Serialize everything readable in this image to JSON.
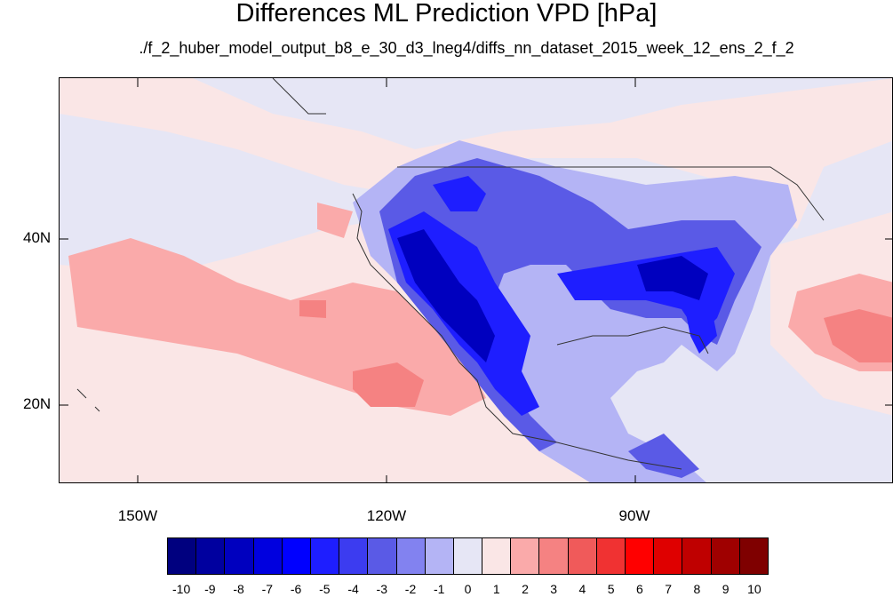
{
  "title": "Differences ML Prediction VPD [hPa]",
  "subtitle": "./f_2_huber_model_output_b8_e_30_d3_lneg4/diffs_nn_dataset_2015_week_12_ens_2_f_2",
  "map": {
    "lat_labels": [
      "40N",
      "20N"
    ],
    "lon_labels": [
      "150W",
      "120W",
      "90W"
    ],
    "background_color": "#e6e6f5"
  },
  "colorbar": {
    "labels": [
      "-10",
      "-9",
      "-8",
      "-7",
      "-6",
      "-5",
      "-4",
      "-3",
      "-2",
      "-1",
      "0",
      "1",
      "2",
      "3",
      "4",
      "5",
      "6",
      "7",
      "8",
      "9",
      "10"
    ],
    "colors": [
      "#00007f",
      "#00009f",
      "#0000bf",
      "#0000df",
      "#0000ff",
      "#1e1eff",
      "#3c3cf0",
      "#5a5ae6",
      "#8282f0",
      "#b4b4f5",
      "#e6e6f5",
      "#fae6e6",
      "#faaaaa",
      "#f58282",
      "#f05a5a",
      "#f03232",
      "#ff0000",
      "#df0000",
      "#bf0000",
      "#9f0000",
      "#7f0000"
    ]
  }
}
